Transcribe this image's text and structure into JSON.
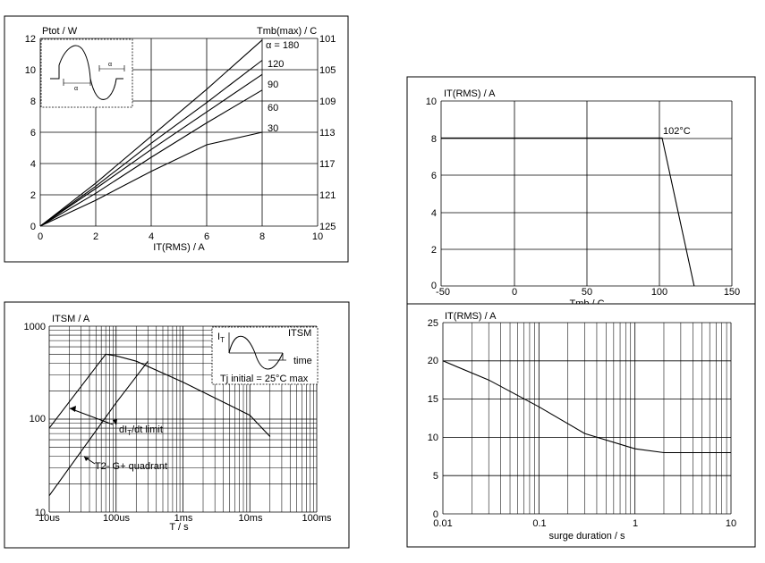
{
  "chart_data": [
    {
      "id": "power",
      "type": "line",
      "ylabel": "Ptot / W",
      "xlabel": "IT(RMS) / A",
      "right_label": "Tmb(max) / C",
      "xlim": [
        0,
        10
      ],
      "ylim": [
        0,
        12
      ],
      "x_ticks": [
        "0",
        "2",
        "4",
        "6",
        "8",
        "10"
      ],
      "y_ticks": [
        "0",
        "2",
        "4",
        "6",
        "8",
        "10",
        "12"
      ],
      "right_ticks": [
        "125",
        "121",
        "117",
        "113",
        "109",
        "105",
        "101"
      ],
      "inset_labels": [
        "α",
        "α"
      ],
      "series": [
        {
          "name": "α = 180",
          "x": [
            0,
            2,
            4,
            6,
            8
          ],
          "y": [
            0,
            2.75,
            5.75,
            8.75,
            11.9
          ]
        },
        {
          "name": "120",
          "x": [
            0,
            2,
            4,
            6,
            8
          ],
          "y": [
            0,
            2.55,
            5.3,
            7.9,
            10.6
          ]
        },
        {
          "name": "90",
          "x": [
            0,
            2,
            4,
            6,
            8
          ],
          "y": [
            0,
            2.4,
            4.9,
            7.3,
            9.7
          ]
        },
        {
          "name": "60",
          "x": [
            0,
            2,
            4,
            6,
            8
          ],
          "y": [
            0,
            2.1,
            4.4,
            6.6,
            8.7
          ]
        },
        {
          "name": "30",
          "x": [
            0,
            2,
            4,
            6,
            8
          ],
          "y": [
            0,
            1.65,
            3.5,
            5.2,
            6.0
          ]
        }
      ]
    },
    {
      "id": "derating",
      "type": "line",
      "ylabel": "IT(RMS) / A",
      "xlabel": "Tmb / C",
      "xlim": [
        -50,
        150
      ],
      "ylim": [
        0,
        10
      ],
      "x_ticks": [
        "-50",
        "0",
        "50",
        "100",
        "150"
      ],
      "y_ticks": [
        "0",
        "2",
        "4",
        "6",
        "8",
        "10"
      ],
      "annotation": "102°C",
      "series": [
        {
          "x": [
            -50,
            102,
            124
          ],
          "y": [
            8,
            8,
            0
          ]
        }
      ]
    },
    {
      "id": "itsm",
      "type": "line",
      "ylabel": "ITSM / A",
      "xlabel": "T / s",
      "yscale": "log",
      "xscale": "log",
      "xlim": [
        1e-05,
        0.1
      ],
      "ylim": [
        10,
        1000
      ],
      "x_ticks": [
        "10us",
        "100us",
        "1ms",
        "10ms",
        "100ms"
      ],
      "y_ticks": [
        "10",
        "100",
        "1000"
      ],
      "inset": {
        "it": "I",
        "it_sub": "T",
        "itsm": "ITSM",
        "time": "time",
        "note": "Tj initial = 25°C max"
      },
      "annotations": [
        "dI",
        "T",
        "/dt limit",
        "T2- G+ quadrant"
      ],
      "series": [
        {
          "x": [
            1e-05,
            7e-05,
            0.0001,
            0.0002,
            0.001,
            0.01,
            0.02
          ],
          "y": [
            80,
            500,
            480,
            420,
            250,
            110,
            65
          ]
        },
        {
          "x": [
            1e-05,
            0.0001,
            0.0003
          ],
          "y": [
            15,
            150,
            420
          ]
        }
      ]
    },
    {
      "id": "surge",
      "type": "line",
      "ylabel": "IT(RMS) / A",
      "xlabel": "surge duration / s",
      "xscale": "log",
      "xlim": [
        0.01,
        10
      ],
      "ylim": [
        0,
        25
      ],
      "x_ticks": [
        "0.01",
        "0.1",
        "1",
        "10"
      ],
      "y_ticks": [
        "0",
        "5",
        "10",
        "15",
        "20",
        "25"
      ],
      "series": [
        {
          "x": [
            0.01,
            0.03,
            0.1,
            0.3,
            1,
            2,
            10
          ],
          "y": [
            20,
            17.5,
            14,
            10.5,
            8.5,
            8,
            8
          ]
        }
      ]
    }
  ]
}
